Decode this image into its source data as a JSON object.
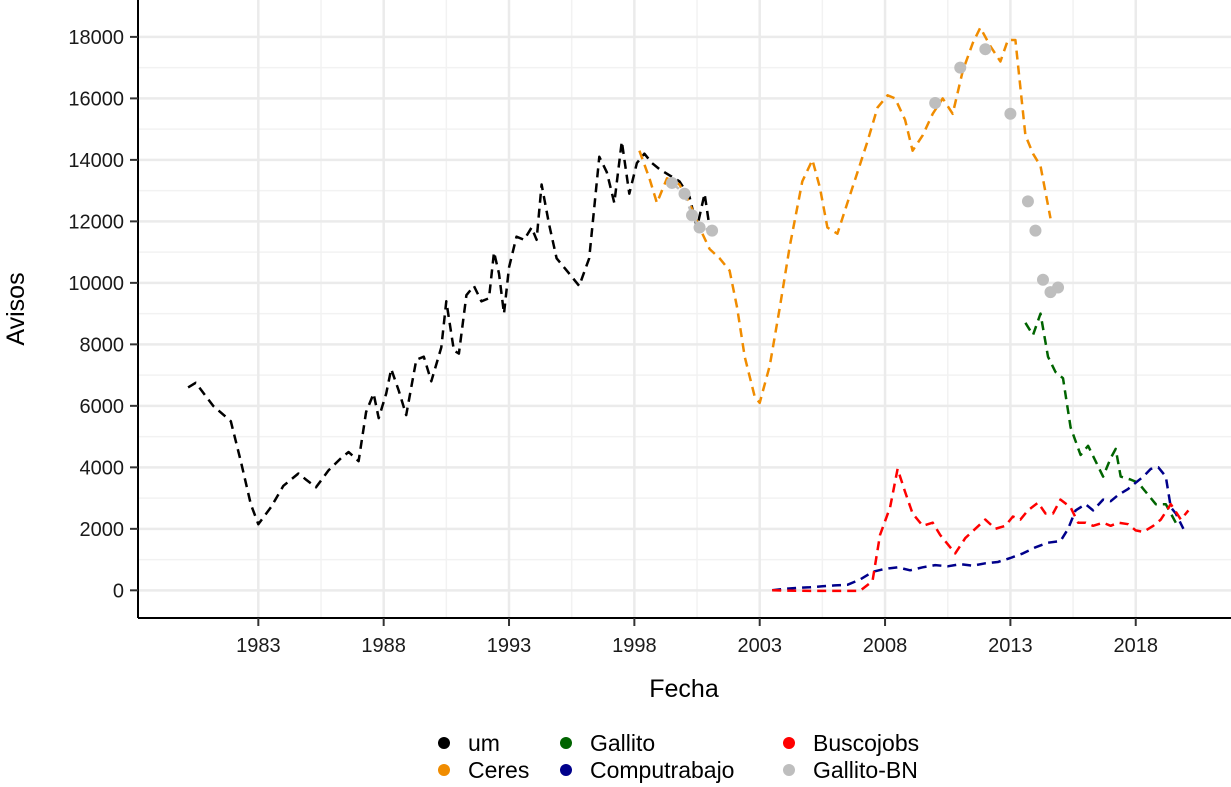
{
  "chart_data": {
    "type": "line",
    "xlabel": "Fecha",
    "ylabel": "Avisos",
    "xlim": [
      1978.2,
      2021.8
    ],
    "ylim": [
      -900,
      19200
    ],
    "x_ticks": [
      1983,
      1988,
      1993,
      1998,
      2003,
      2008,
      2013,
      2018
    ],
    "y_ticks": [
      0,
      2000,
      4000,
      6000,
      8000,
      10000,
      12000,
      14000,
      16000,
      18000
    ],
    "grid": true,
    "legend_position": "bottom",
    "series": [
      {
        "name": "um",
        "color": "#000000",
        "line": [
          [
            1980.2,
            6600
          ],
          [
            1980.5,
            6750
          ],
          [
            1981.2,
            6000
          ],
          [
            1981.9,
            5500
          ],
          [
            1982.3,
            4200
          ],
          [
            1982.7,
            2800
          ],
          [
            1983,
            2150
          ],
          [
            1983.5,
            2700
          ],
          [
            1984,
            3400
          ],
          [
            1984.6,
            3800
          ],
          [
            1984.9,
            3600
          ],
          [
            1985.3,
            3350
          ],
          [
            1985.8,
            3900
          ],
          [
            1986.3,
            4300
          ],
          [
            1986.6,
            4500
          ],
          [
            1987,
            4200
          ],
          [
            1987.3,
            5800
          ],
          [
            1987.6,
            6400
          ],
          [
            1987.8,
            5600
          ],
          [
            1988.1,
            6400
          ],
          [
            1988.3,
            7200
          ],
          [
            1988.6,
            6500
          ],
          [
            1988.9,
            5700
          ],
          [
            1989.3,
            7500
          ],
          [
            1989.6,
            7600
          ],
          [
            1989.9,
            6800
          ],
          [
            1990.3,
            7900
          ],
          [
            1990.5,
            9400
          ],
          [
            1990.8,
            7800
          ],
          [
            1991,
            7700
          ],
          [
            1991.3,
            9600
          ],
          [
            1991.6,
            9900
          ],
          [
            1991.9,
            9400
          ],
          [
            1992.2,
            9500
          ],
          [
            1992.4,
            11000
          ],
          [
            1992.6,
            10300
          ],
          [
            1992.8,
            9000
          ],
          [
            1993,
            10500
          ],
          [
            1993.3,
            11500
          ],
          [
            1993.6,
            11400
          ],
          [
            1993.9,
            11800
          ],
          [
            1994.1,
            11400
          ],
          [
            1994.3,
            13200
          ],
          [
            1994.6,
            11900
          ],
          [
            1994.9,
            10800
          ],
          [
            1995.4,
            10300
          ],
          [
            1995.8,
            9900
          ],
          [
            1996.2,
            10800
          ],
          [
            1996.6,
            14100
          ],
          [
            1996.9,
            13600
          ],
          [
            1997.2,
            12600
          ],
          [
            1997.5,
            14600
          ],
          [
            1997.8,
            12900
          ],
          [
            1998.1,
            13900
          ],
          [
            1998.4,
            14200
          ],
          [
            1998.7,
            13900
          ],
          [
            1999,
            13700
          ],
          [
            1999.4,
            13500
          ],
          [
            1999.8,
            13300
          ],
          [
            2000.2,
            12800
          ],
          [
            2000.5,
            11800
          ],
          [
            2000.8,
            12900
          ],
          [
            2001,
            11800
          ]
        ]
      },
      {
        "name": "Ceres",
        "color": "#f08c00",
        "line": [
          [
            1998.2,
            14300
          ],
          [
            1998.6,
            13400
          ],
          [
            1998.9,
            12600
          ],
          [
            1999.3,
            13400
          ],
          [
            1999.8,
            13200
          ],
          [
            2000.2,
            12600
          ],
          [
            2000.6,
            11800
          ],
          [
            2001,
            11100
          ],
          [
            2001.4,
            10800
          ],
          [
            2001.8,
            10400
          ],
          [
            2002.1,
            9200
          ],
          [
            2002.4,
            7600
          ],
          [
            2002.8,
            6300
          ],
          [
            2003,
            6100
          ],
          [
            2003.4,
            7300
          ],
          [
            2003.8,
            9200
          ],
          [
            2004.2,
            11200
          ],
          [
            2004.7,
            13300
          ],
          [
            2005.1,
            14000
          ],
          [
            2005.4,
            13100
          ],
          [
            2005.7,
            11800
          ],
          [
            2006.1,
            11600
          ],
          [
            2006.5,
            12600
          ],
          [
            2006.9,
            13600
          ],
          [
            2007.3,
            14600
          ],
          [
            2007.7,
            15700
          ],
          [
            2008.1,
            16100
          ],
          [
            2008.4,
            16000
          ],
          [
            2008.8,
            15300
          ],
          [
            2009.1,
            14300
          ],
          [
            2009.5,
            14800
          ],
          [
            2009.9,
            15500
          ],
          [
            2010.3,
            16000
          ],
          [
            2010.7,
            15500
          ],
          [
            2011.1,
            16900
          ],
          [
            2011.5,
            17800
          ],
          [
            2011.8,
            18300
          ],
          [
            2012.2,
            17700
          ],
          [
            2012.6,
            17200
          ],
          [
            2012.9,
            17900
          ],
          [
            2013.2,
            17900
          ],
          [
            2013.6,
            14800
          ],
          [
            2013.9,
            14200
          ],
          [
            2014.2,
            13800
          ],
          [
            2014.6,
            12100
          ]
        ]
      },
      {
        "name": "Gallito",
        "color": "#006400",
        "line": [
          [
            2013.6,
            8700
          ],
          [
            2013.9,
            8300
          ],
          [
            2014.2,
            9000
          ],
          [
            2014.5,
            7600
          ],
          [
            2014.8,
            7100
          ],
          [
            2015.1,
            6900
          ],
          [
            2015.4,
            5300
          ],
          [
            2015.8,
            4400
          ],
          [
            2016.1,
            4700
          ],
          [
            2016.4,
            4200
          ],
          [
            2016.7,
            3700
          ],
          [
            2017,
            4300
          ],
          [
            2017.2,
            4600
          ],
          [
            2017.4,
            3700
          ],
          [
            2017.8,
            3600
          ],
          [
            2018.1,
            3500
          ],
          [
            2018.5,
            3100
          ],
          [
            2018.8,
            2800
          ],
          [
            2019.2,
            2800
          ],
          [
            2019.6,
            2200
          ]
        ]
      },
      {
        "name": "Computrabajo",
        "color": "#00008b",
        "line": [
          [
            2003.5,
            0
          ],
          [
            2004,
            50
          ],
          [
            2004.5,
            80
          ],
          [
            2005,
            100
          ],
          [
            2005.5,
            130
          ],
          [
            2006,
            160
          ],
          [
            2006.5,
            180
          ],
          [
            2007,
            350
          ],
          [
            2007.5,
            600
          ],
          [
            2008,
            700
          ],
          [
            2008.5,
            750
          ],
          [
            2009,
            650
          ],
          [
            2009.5,
            750
          ],
          [
            2010,
            820
          ],
          [
            2010.5,
            780
          ],
          [
            2011,
            850
          ],
          [
            2011.5,
            800
          ],
          [
            2012,
            880
          ],
          [
            2012.5,
            920
          ],
          [
            2013,
            1050
          ],
          [
            2013.5,
            1200
          ],
          [
            2014,
            1400
          ],
          [
            2014.5,
            1550
          ],
          [
            2015,
            1600
          ],
          [
            2015.3,
            2000
          ],
          [
            2015.6,
            2600
          ],
          [
            2016,
            2800
          ],
          [
            2016.3,
            2600
          ],
          [
            2016.7,
            2950
          ],
          [
            2017,
            2900
          ],
          [
            2017.3,
            3100
          ],
          [
            2017.7,
            3300
          ],
          [
            2018,
            3500
          ],
          [
            2018.3,
            3700
          ],
          [
            2018.6,
            3950
          ],
          [
            2018.9,
            4000
          ],
          [
            2019.2,
            3700
          ],
          [
            2019.4,
            2700
          ],
          [
            2019.6,
            2500
          ],
          [
            2019.9,
            2000
          ]
        ]
      },
      {
        "name": "Buscojobs",
        "color": "#ff0000",
        "line": [
          [
            2003.5,
            0
          ],
          [
            2004,
            -10
          ],
          [
            2005,
            -20
          ],
          [
            2006,
            -20
          ],
          [
            2007,
            -20
          ],
          [
            2007.5,
            300
          ],
          [
            2007.8,
            1800
          ],
          [
            2008.2,
            2700
          ],
          [
            2008.5,
            3950
          ],
          [
            2008.8,
            3200
          ],
          [
            2009.1,
            2500
          ],
          [
            2009.5,
            2100
          ],
          [
            2009.9,
            2200
          ],
          [
            2010.2,
            1800
          ],
          [
            2010.5,
            1500
          ],
          [
            2010.8,
            1200
          ],
          [
            2011.2,
            1700
          ],
          [
            2011.6,
            2000
          ],
          [
            2012,
            2300
          ],
          [
            2012.4,
            2000
          ],
          [
            2012.8,
            2100
          ],
          [
            2013.1,
            2400
          ],
          [
            2013.4,
            2300
          ],
          [
            2013.7,
            2600
          ],
          [
            2014.1,
            2850
          ],
          [
            2014.4,
            2500
          ],
          [
            2014.7,
            2500
          ],
          [
            2015,
            2950
          ],
          [
            2015.4,
            2700
          ],
          [
            2015.7,
            2200
          ],
          [
            2016,
            2200
          ],
          [
            2016.3,
            2100
          ],
          [
            2016.7,
            2200
          ],
          [
            2017,
            2100
          ],
          [
            2017.3,
            2200
          ],
          [
            2017.7,
            2150
          ],
          [
            2018,
            1950
          ],
          [
            2018.3,
            1900
          ],
          [
            2018.7,
            2100
          ],
          [
            2019,
            2300
          ],
          [
            2019.4,
            2800
          ],
          [
            2019.8,
            2300
          ],
          [
            2020.1,
            2600
          ]
        ]
      },
      {
        "name": "Gallito-BN",
        "color": "#bebebe",
        "line": [
          [
            1999.5,
            13250
          ],
          [
            2000,
            12900
          ],
          [
            2000.3,
            12200
          ],
          [
            2000.6,
            11800
          ],
          [
            2001.1,
            11700
          ]
        ],
        "points": [
          [
            1999.5,
            13250
          ],
          [
            2000,
            12900
          ],
          [
            2000.3,
            12200
          ],
          [
            2000.6,
            11800
          ],
          [
            2001.1,
            11700
          ],
          [
            2010,
            15850
          ],
          [
            2011,
            17000
          ],
          [
            2012,
            17600
          ],
          [
            2013,
            15500
          ],
          [
            2013.7,
            12650
          ],
          [
            2014,
            11700
          ],
          [
            2014.3,
            10100
          ],
          [
            2014.6,
            9700
          ],
          [
            2014.9,
            9850
          ]
        ]
      }
    ]
  }
}
